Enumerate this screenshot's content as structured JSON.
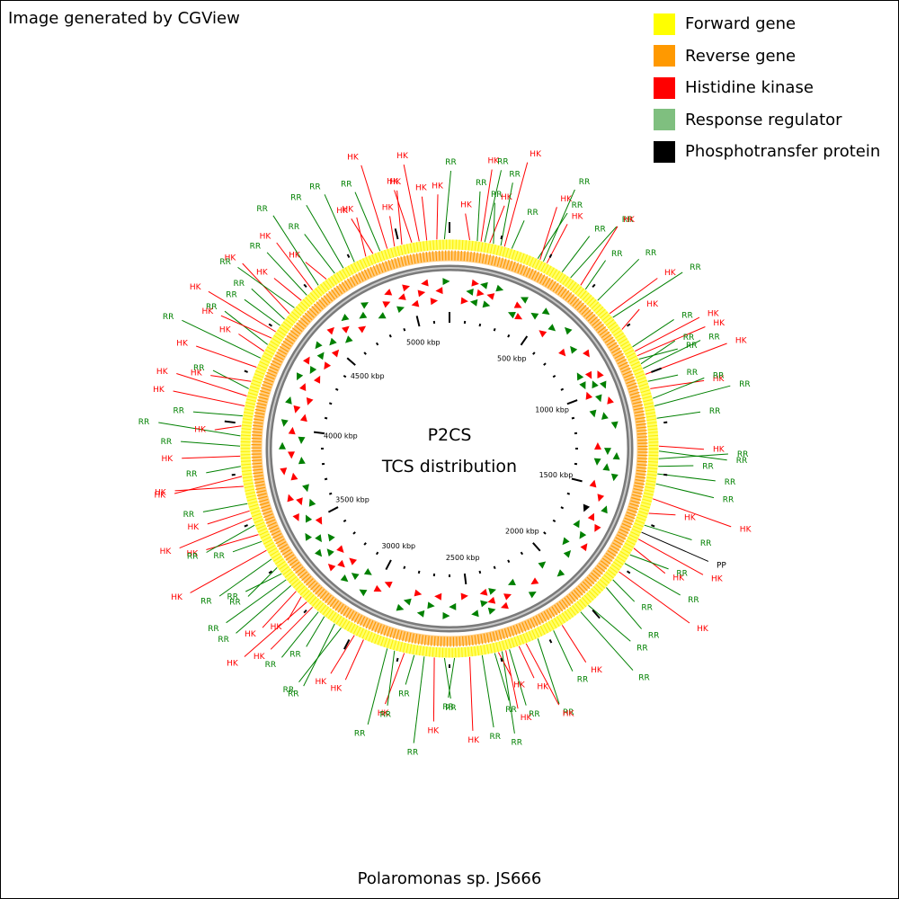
{
  "credit": "Image generated by CGView",
  "legend": [
    {
      "label": "Forward gene",
      "color": "#ffff00"
    },
    {
      "label": "Reverse gene",
      "color": "#ff9900"
    },
    {
      "label": "Histidine kinase",
      "color": "#ff0000"
    },
    {
      "label": "Response regulator",
      "color": "#7fbf7f"
    },
    {
      "label": "Phosphotransfer protein",
      "color": "#000000"
    }
  ],
  "center": {
    "line1": "P2CS",
    "line2": "TCS distribution"
  },
  "caption": "Polaromonas sp. JS666",
  "map": {
    "genome_length_kbp": 5200,
    "tick_labels": [
      {
        "kbp": 500,
        "label": "500 kbp"
      },
      {
        "kbp": 1000,
        "label": "1000 kbp"
      },
      {
        "kbp": 1500,
        "label": "1500 kbp"
      },
      {
        "kbp": 2000,
        "label": "2000 kbp"
      },
      {
        "kbp": 2500,
        "label": "2500 kbp"
      },
      {
        "kbp": 3000,
        "label": "3000 kbp"
      },
      {
        "kbp": 3500,
        "label": "3500 kbp"
      },
      {
        "kbp": 4000,
        "label": "4000 kbp"
      },
      {
        "kbp": 4500,
        "label": "4500 kbp"
      },
      {
        "kbp": 5000,
        "label": "5000 kbp"
      }
    ],
    "features": [
      {
        "kbp": 80,
        "type": "HK"
      },
      {
        "kbp": 110,
        "type": "RR"
      },
      {
        "kbp": 125,
        "type": "HK"
      },
      {
        "kbp": 140,
        "type": "RR"
      },
      {
        "kbp": 160,
        "type": "HK"
      },
      {
        "kbp": 175,
        "type": "RR"
      },
      {
        "kbp": 205,
        "type": "RR"
      },
      {
        "kbp": 220,
        "type": "HK"
      },
      {
        "kbp": 250,
        "type": "RR"
      },
      {
        "kbp": 360,
        "type": "RR"
      },
      {
        "kbp": 370,
        "type": "HK"
      },
      {
        "kbp": 385,
        "type": "RR"
      },
      {
        "kbp": 400,
        "type": "HK"
      },
      {
        "kbp": 470,
        "type": "RR"
      },
      {
        "kbp": 510,
        "type": "RR"
      },
      {
        "kbp": 560,
        "type": "HK"
      },
      {
        "kbp": 585,
        "type": "RR"
      },
      {
        "kbp": 650,
        "type": "RR"
      },
      {
        "kbp": 720,
        "type": "HK"
      },
      {
        "kbp": 740,
        "type": "RR"
      },
      {
        "kbp": 800,
        "type": "HK"
      },
      {
        "kbp": 880,
        "type": "RR"
      },
      {
        "kbp": 900,
        "type": "HK"
      },
      {
        "kbp": 920,
        "type": "HK"
      },
      {
        "kbp": 935,
        "type": "RR"
      },
      {
        "kbp": 955,
        "type": "RR"
      },
      {
        "kbp": 975,
        "type": "RR"
      },
      {
        "kbp": 1000,
        "type": "HK"
      },
      {
        "kbp": 1030,
        "type": "RR"
      },
      {
        "kbp": 1060,
        "type": "HK"
      },
      {
        "kbp": 1100,
        "type": "RR"
      },
      {
        "kbp": 1130,
        "type": "RR"
      },
      {
        "kbp": 1180,
        "type": "RR"
      },
      {
        "kbp": 1290,
        "type": "HK"
      },
      {
        "kbp": 1310,
        "type": "RR"
      },
      {
        "kbp": 1340,
        "type": "RR"
      },
      {
        "kbp": 1370,
        "type": "RR"
      },
      {
        "kbp": 1400,
        "type": "RR"
      },
      {
        "kbp": 1440,
        "type": "RR"
      },
      {
        "kbp": 1500,
        "type": "HK"
      },
      {
        "kbp": 1560,
        "type": "HK"
      },
      {
        "kbp": 1610,
        "type": "RR"
      },
      {
        "kbp": 1640,
        "type": "PP"
      },
      {
        "kbp": 1670,
        "type": "HK"
      },
      {
        "kbp": 1710,
        "type": "HK"
      },
      {
        "kbp": 1740,
        "type": "RR"
      },
      {
        "kbp": 1780,
        "type": "RR"
      },
      {
        "kbp": 1820,
        "type": "HK"
      },
      {
        "kbp": 1860,
        "type": "RR"
      },
      {
        "kbp": 1900,
        "type": "RR"
      },
      {
        "kbp": 2000,
        "type": "RR"
      },
      {
        "kbp": 2040,
        "type": "RR"
      },
      {
        "kbp": 2130,
        "type": "HK"
      },
      {
        "kbp": 2170,
        "type": "RR"
      },
      {
        "kbp": 2240,
        "type": "RR"
      },
      {
        "kbp": 2290,
        "type": "HK"
      },
      {
        "kbp": 2320,
        "type": "HK"
      },
      {
        "kbp": 2360,
        "type": "RR"
      },
      {
        "kbp": 2375,
        "type": "HK"
      },
      {
        "kbp": 2390,
        "type": "RR"
      },
      {
        "kbp": 2405,
        "type": "HK"
      },
      {
        "kbp": 2420,
        "type": "RR"
      },
      {
        "kbp": 2470,
        "type": "RR"
      },
      {
        "kbp": 2520,
        "type": "HK"
      },
      {
        "kbp": 2580,
        "type": "RR"
      },
      {
        "kbp": 2620,
        "type": "RR"
      },
      {
        "kbp": 2660,
        "type": "HK"
      },
      {
        "kbp": 2700,
        "type": "RR"
      },
      {
        "kbp": 2740,
        "type": "RR"
      },
      {
        "kbp": 2780,
        "type": "HK"
      },
      {
        "kbp": 2820,
        "type": "RR"
      },
      {
        "kbp": 2850,
        "type": "RR"
      },
      {
        "kbp": 2950,
        "type": "HK"
      },
      {
        "kbp": 2990,
        "type": "HK"
      },
      {
        "kbp": 3050,
        "type": "RR"
      },
      {
        "kbp": 3080,
        "type": "RR"
      },
      {
        "kbp": 3130,
        "type": "RR"
      },
      {
        "kbp": 3160,
        "type": "RR"
      },
      {
        "kbp": 3190,
        "type": "HK"
      },
      {
        "kbp": 3220,
        "type": "HK"
      },
      {
        "kbp": 3250,
        "type": "HK"
      },
      {
        "kbp": 3280,
        "type": "HK"
      },
      {
        "kbp": 3310,
        "type": "RR"
      },
      {
        "kbp": 3340,
        "type": "RR"
      },
      {
        "kbp": 3370,
        "type": "RR"
      },
      {
        "kbp": 3400,
        "type": "RR"
      },
      {
        "kbp": 3440,
        "type": "RR"
      },
      {
        "kbp": 3480,
        "type": "HK"
      },
      {
        "kbp": 3520,
        "type": "RR"
      },
      {
        "kbp": 3550,
        "type": "HK"
      },
      {
        "kbp": 3590,
        "type": "RR"
      },
      {
        "kbp": 3620,
        "type": "HK"
      },
      {
        "kbp": 3650,
        "type": "HK"
      },
      {
        "kbp": 3680,
        "type": "RR"
      },
      {
        "kbp": 3750,
        "type": "HK"
      },
      {
        "kbp": 3790,
        "type": "HK"
      },
      {
        "kbp": 3830,
        "type": "RR"
      },
      {
        "kbp": 3870,
        "type": "HK"
      },
      {
        "kbp": 3910,
        "type": "RR"
      },
      {
        "kbp": 3950,
        "type": "RR"
      },
      {
        "kbp": 3990,
        "type": "HK"
      },
      {
        "kbp": 4030,
        "type": "RR"
      },
      {
        "kbp": 4070,
        "type": "HK"
      },
      {
        "kbp": 4110,
        "type": "HK"
      },
      {
        "kbp": 4140,
        "type": "RR"
      },
      {
        "kbp": 4170,
        "type": "HK"
      },
      {
        "kbp": 4230,
        "type": "HK"
      },
      {
        "kbp": 4270,
        "type": "RR"
      },
      {
        "kbp": 4300,
        "type": "HK"
      },
      {
        "kbp": 4330,
        "type": "RR"
      },
      {
        "kbp": 4360,
        "type": "HK"
      },
      {
        "kbp": 4390,
        "type": "HK"
      },
      {
        "kbp": 4420,
        "type": "RR"
      },
      {
        "kbp": 4450,
        "type": "RR"
      },
      {
        "kbp": 4480,
        "type": "HK"
      },
      {
        "kbp": 4510,
        "type": "RR"
      },
      {
        "kbp": 4550,
        "type": "HK"
      },
      {
        "kbp": 4580,
        "type": "RR"
      },
      {
        "kbp": 4610,
        "type": "HK"
      },
      {
        "kbp": 4640,
        "type": "RR"
      },
      {
        "kbp": 4680,
        "type": "HK"
      },
      {
        "kbp": 4720,
        "type": "RR"
      },
      {
        "kbp": 4760,
        "type": "RR"
      },
      {
        "kbp": 4810,
        "type": "RR"
      },
      {
        "kbp": 4860,
        "type": "HK"
      },
      {
        "kbp": 4890,
        "type": "HK"
      },
      {
        "kbp": 4920,
        "type": "RR"
      },
      {
        "kbp": 4950,
        "type": "HK"
      },
      {
        "kbp": 4980,
        "type": "HK"
      },
      {
        "kbp": 5010,
        "type": "HK"
      },
      {
        "kbp": 5050,
        "type": "HK"
      },
      {
        "kbp": 5080,
        "type": "HK"
      },
      {
        "kbp": 5110,
        "type": "HK"
      },
      {
        "kbp": 5150,
        "type": "HK"
      },
      {
        "kbp": 5180,
        "type": "RR"
      }
    ],
    "type_colors": {
      "HK": "#ff0000",
      "RR": "#008000",
      "PP": "#000000"
    }
  }
}
